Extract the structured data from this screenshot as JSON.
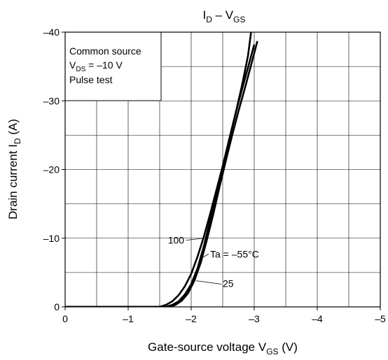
{
  "chart_data": {
    "type": "line",
    "title": {
      "main": "I",
      "sub1": "D",
      "mid": " – V",
      "sub2": "GS"
    },
    "xlabel": {
      "main": "Gate-source voltage   V",
      "sub": "GS",
      "unit": "   (V)"
    },
    "ylabel": {
      "main": "Drain current   I",
      "sub": "D",
      "unit": "   (A)"
    },
    "xlim": [
      0,
      -5
    ],
    "ylim": [
      0,
      -40
    ],
    "x_ticks": [
      {
        "v": 0,
        "label": "0"
      },
      {
        "v": -1,
        "label": "–1"
      },
      {
        "v": -2,
        "label": "–2"
      },
      {
        "v": -3,
        "label": "–3"
      },
      {
        "v": -4,
        "label": "–4"
      },
      {
        "v": -5,
        "label": "–5"
      }
    ],
    "y_ticks": [
      {
        "v": 0,
        "label": "0"
      },
      {
        "v": -10,
        "label": "–10"
      },
      {
        "v": -20,
        "label": "–20"
      },
      {
        "v": -30,
        "label": "–30"
      },
      {
        "v": -40,
        "label": "–40"
      }
    ],
    "grid": {
      "x_minor_step": -0.5,
      "y_minor_step": -5
    },
    "conditions": {
      "line1": "Common source",
      "line2_main": "V",
      "line2_sub": "DS",
      "line2_rest": " = –10 V",
      "line3": "Pulse test"
    },
    "series": [
      {
        "name": "100",
        "x": [
          0,
          -1.5,
          -1.6,
          -1.7,
          -1.8,
          -1.9,
          -2.0,
          -2.1,
          -2.2,
          -2.3,
          -2.4,
          -2.5,
          -2.6,
          -2.7,
          -2.8,
          -2.9,
          -2.95
        ],
        "y": [
          0,
          0,
          -0.3,
          -0.8,
          -1.7,
          -3.0,
          -4.8,
          -7.3,
          -10.2,
          -13.5,
          -17.0,
          -20.5,
          -24.2,
          -28.0,
          -32.0,
          -36.5,
          -40
        ]
      },
      {
        "name": "25",
        "x": [
          0,
          -1.6,
          -1.7,
          -1.8,
          -1.9,
          -2.0,
          -2.1,
          -2.2,
          -2.3,
          -2.4,
          -2.5,
          -2.6,
          -2.7,
          -2.8,
          -2.9,
          -3.0
        ],
        "y": [
          0,
          0,
          -0.3,
          -0.8,
          -1.8,
          -3.3,
          -5.6,
          -8.8,
          -12.6,
          -16.5,
          -20.4,
          -24.3,
          -28.0,
          -31.5,
          -34.8,
          -38.2
        ]
      },
      {
        "name": "Ta = –55°C",
        "x": [
          0,
          -1.65,
          -1.75,
          -1.85,
          -1.95,
          -2.05,
          -2.15,
          -2.25,
          -2.35,
          -2.45,
          -2.55,
          -2.65,
          -2.75,
          -2.85,
          -2.95,
          -3.05
        ],
        "y": [
          0,
          0,
          -0.3,
          -0.9,
          -2.0,
          -3.8,
          -6.4,
          -9.8,
          -13.5,
          -17.5,
          -21.3,
          -25.0,
          -28.5,
          -31.8,
          -35.2,
          -38.7
        ]
      }
    ],
    "annotations": [
      {
        "text": "100",
        "series": 0,
        "label_x": -1.63,
        "label_y": -9.2,
        "point_x": -2.2,
        "point_y": -10.0
      },
      {
        "text": "Ta = –55°C",
        "series": 2,
        "label_x": -2.3,
        "label_y": -7.2,
        "point_x": -2.18,
        "point_y": -7.2
      },
      {
        "text": "25",
        "series": 1,
        "label_x": -2.5,
        "label_y": -2.9,
        "point_x": -2.08,
        "point_y": -3.8
      }
    ]
  }
}
